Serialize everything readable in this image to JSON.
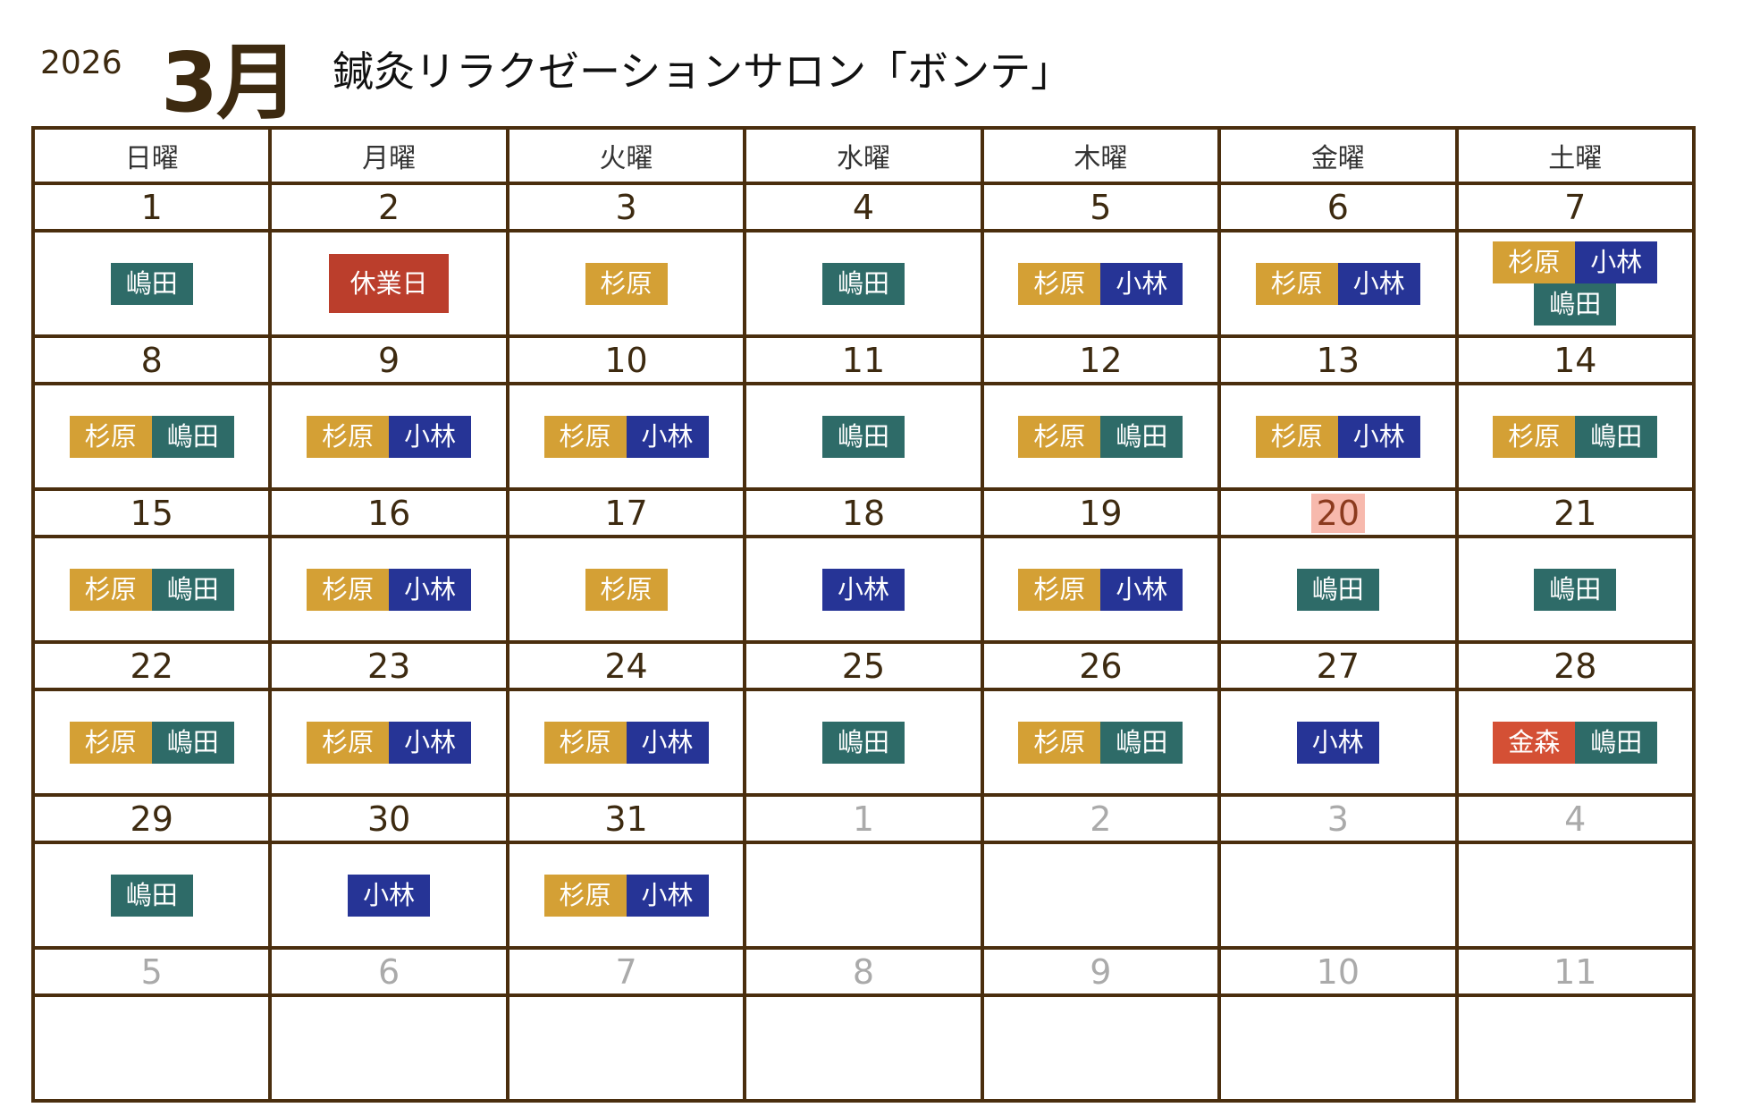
{
  "header": {
    "year": "2026",
    "month": "3月",
    "salon": "鍼灸リラクゼーションサロン「ボンテ」"
  },
  "weekdays": [
    "日曜",
    "月曜",
    "火曜",
    "水曜",
    "木曜",
    "金曜",
    "土曜"
  ],
  "staff_colors": {
    "嶋田": "#2e6b68",
    "杉原": "#d4a035",
    "小林": "#263496",
    "金森": "#d45035",
    "休業日": "#bb3e2c"
  },
  "today": "20",
  "weeks": [
    [
      {
        "d": "1",
        "ev": [
          [
            "嶋田"
          ]
        ]
      },
      {
        "d": "2",
        "ev": [
          [
            "休業日"
          ]
        ]
      },
      {
        "d": "3",
        "ev": [
          [
            "杉原"
          ]
        ]
      },
      {
        "d": "4",
        "ev": [
          [
            "嶋田"
          ]
        ]
      },
      {
        "d": "5",
        "ev": [
          [
            "杉原",
            "小林"
          ]
        ]
      },
      {
        "d": "6",
        "ev": [
          [
            "杉原",
            "小林"
          ]
        ]
      },
      {
        "d": "7",
        "ev": [
          [
            "杉原",
            "小林"
          ],
          [
            "嶋田"
          ]
        ]
      }
    ],
    [
      {
        "d": "8",
        "ev": [
          [
            "杉原",
            "嶋田"
          ]
        ]
      },
      {
        "d": "9",
        "ev": [
          [
            "杉原",
            "小林"
          ]
        ]
      },
      {
        "d": "10",
        "ev": [
          [
            "杉原",
            "小林"
          ]
        ]
      },
      {
        "d": "11",
        "ev": [
          [
            "嶋田"
          ]
        ]
      },
      {
        "d": "12",
        "ev": [
          [
            "杉原",
            "嶋田"
          ]
        ]
      },
      {
        "d": "13",
        "ev": [
          [
            "杉原",
            "小林"
          ]
        ]
      },
      {
        "d": "14",
        "ev": [
          [
            "杉原",
            "嶋田"
          ]
        ]
      }
    ],
    [
      {
        "d": "15",
        "ev": [
          [
            "杉原",
            "嶋田"
          ]
        ]
      },
      {
        "d": "16",
        "ev": [
          [
            "杉原",
            "小林"
          ]
        ]
      },
      {
        "d": "17",
        "ev": [
          [
            "杉原"
          ]
        ]
      },
      {
        "d": "18",
        "ev": [
          [
            "小林"
          ]
        ]
      },
      {
        "d": "19",
        "ev": [
          [
            "杉原",
            "小林"
          ]
        ]
      },
      {
        "d": "20",
        "ev": [
          [
            "嶋田"
          ]
        ]
      },
      {
        "d": "21",
        "ev": [
          [
            "嶋田"
          ]
        ]
      }
    ],
    [
      {
        "d": "22",
        "ev": [
          [
            "杉原",
            "嶋田"
          ]
        ]
      },
      {
        "d": "23",
        "ev": [
          [
            "杉原",
            "小林"
          ]
        ]
      },
      {
        "d": "24",
        "ev": [
          [
            "杉原",
            "小林"
          ]
        ]
      },
      {
        "d": "25",
        "ev": [
          [
            "嶋田"
          ]
        ]
      },
      {
        "d": "26",
        "ev": [
          [
            "杉原",
            "嶋田"
          ]
        ]
      },
      {
        "d": "27",
        "ev": [
          [
            "小林"
          ]
        ]
      },
      {
        "d": "28",
        "ev": [
          [
            "金森",
            "嶋田"
          ]
        ]
      }
    ],
    [
      {
        "d": "29",
        "ev": [
          [
            "嶋田"
          ]
        ]
      },
      {
        "d": "30",
        "ev": [
          [
            "小林"
          ]
        ]
      },
      {
        "d": "31",
        "ev": [
          [
            "杉原",
            "小林"
          ]
        ]
      },
      {
        "d": "1",
        "other": true,
        "ev": []
      },
      {
        "d": "2",
        "other": true,
        "ev": []
      },
      {
        "d": "3",
        "other": true,
        "ev": []
      },
      {
        "d": "4",
        "other": true,
        "ev": []
      }
    ],
    [
      {
        "d": "5",
        "other": true,
        "ev": []
      },
      {
        "d": "6",
        "other": true,
        "ev": []
      },
      {
        "d": "7",
        "other": true,
        "ev": []
      },
      {
        "d": "8",
        "other": true,
        "ev": []
      },
      {
        "d": "9",
        "other": true,
        "ev": []
      },
      {
        "d": "10",
        "other": true,
        "ev": []
      },
      {
        "d": "11",
        "other": true,
        "ev": []
      }
    ]
  ]
}
